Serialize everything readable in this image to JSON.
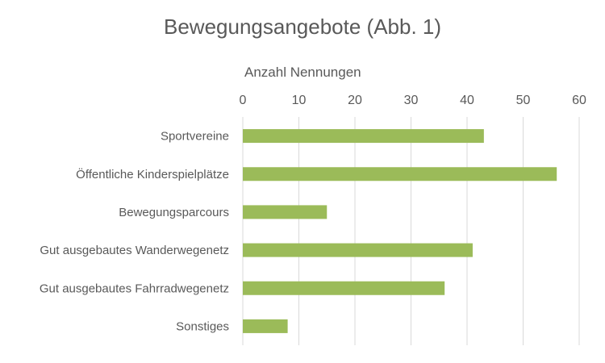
{
  "chart_data": {
    "type": "bar",
    "orientation": "horizontal",
    "title": "Bewegungsangebote (Abb. 1)",
    "xlabel": "Anzahl Nennungen",
    "xlim": [
      0,
      60
    ],
    "xticks": [
      0,
      10,
      20,
      30,
      40,
      50,
      60
    ],
    "x_axis_position": "top",
    "grid": true,
    "categories": [
      "Sportvereine",
      "Öffentliche Kinderspielplätze",
      "Bewegungsparcours",
      "Gut ausgebautes Wanderwegenetz",
      "Gut ausgebautes Fahrradwegenetz",
      "Sonstiges"
    ],
    "values": [
      43,
      56,
      15,
      41,
      36,
      8
    ],
    "bar_color": "#9BBB59"
  }
}
